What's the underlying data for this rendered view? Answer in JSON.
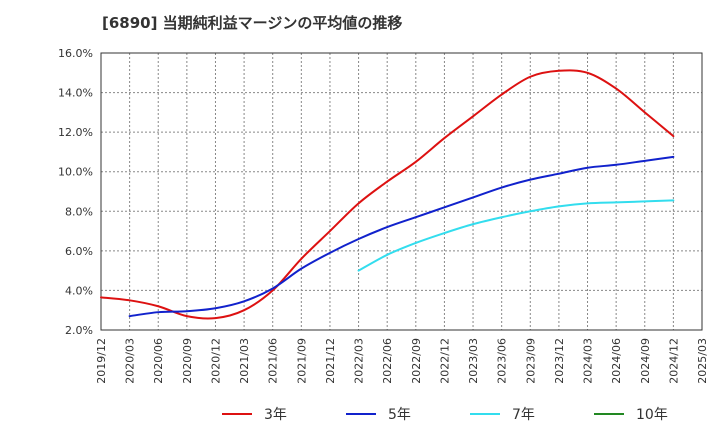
{
  "title": "[6890]  当期純利益マージンの平均値の推移",
  "chart_data": {
    "type": "line",
    "title": "[6890]  当期純利益マージンの平均値の推移",
    "xlabel": "",
    "ylabel": "",
    "ylim": [
      2.0,
      16.0
    ],
    "y_ticks": [
      "2.0%",
      "4.0%",
      "6.0%",
      "8.0%",
      "10.0%",
      "12.0%",
      "14.0%",
      "16.0%"
    ],
    "x_ticks": [
      "2019/12",
      "2020/03",
      "2020/06",
      "2020/09",
      "2020/12",
      "2021/03",
      "2021/06",
      "2021/09",
      "2021/12",
      "2022/03",
      "2022/06",
      "2022/09",
      "2022/12",
      "2023/03",
      "2023/06",
      "2023/09",
      "2023/12",
      "2024/03",
      "2024/06",
      "2024/09",
      "2024/12",
      "2025/03"
    ],
    "grid": true,
    "legend_position": "bottom",
    "series": [
      {
        "name": "3年",
        "color": "#dd1111",
        "points": [
          [
            "2019/12",
            3.65
          ],
          [
            "2020/03",
            3.5
          ],
          [
            "2020/06",
            3.2
          ],
          [
            "2020/09",
            2.7
          ],
          [
            "2020/12",
            2.6
          ],
          [
            "2021/03",
            3.0
          ],
          [
            "2021/06",
            4.0
          ],
          [
            "2021/09",
            5.6
          ],
          [
            "2021/12",
            7.0
          ],
          [
            "2022/03",
            8.4
          ],
          [
            "2022/06",
            9.5
          ],
          [
            "2022/09",
            10.5
          ],
          [
            "2022/12",
            11.7
          ],
          [
            "2023/03",
            12.8
          ],
          [
            "2023/06",
            13.9
          ],
          [
            "2023/09",
            14.8
          ],
          [
            "2023/12",
            15.1
          ],
          [
            "2024/03",
            15.0
          ],
          [
            "2024/06",
            14.2
          ],
          [
            "2024/09",
            13.0
          ],
          [
            "2024/12",
            11.8
          ]
        ]
      },
      {
        "name": "5年",
        "color": "#1122cc",
        "points": [
          [
            "2020/03",
            2.7
          ],
          [
            "2020/06",
            2.9
          ],
          [
            "2020/09",
            2.95
          ],
          [
            "2020/12",
            3.1
          ],
          [
            "2021/03",
            3.45
          ],
          [
            "2021/06",
            4.1
          ],
          [
            "2021/09",
            5.1
          ],
          [
            "2021/12",
            5.9
          ],
          [
            "2022/03",
            6.6
          ],
          [
            "2022/06",
            7.2
          ],
          [
            "2022/09",
            7.7
          ],
          [
            "2022/12",
            8.2
          ],
          [
            "2023/03",
            8.7
          ],
          [
            "2023/06",
            9.2
          ],
          [
            "2023/09",
            9.6
          ],
          [
            "2023/12",
            9.9
          ],
          [
            "2024/03",
            10.2
          ],
          [
            "2024/06",
            10.35
          ],
          [
            "2024/09",
            10.55
          ],
          [
            "2024/12",
            10.75
          ]
        ]
      },
      {
        "name": "7年",
        "color": "#33ddee",
        "points": [
          [
            "2022/03",
            5.0
          ],
          [
            "2022/06",
            5.8
          ],
          [
            "2022/09",
            6.4
          ],
          [
            "2022/12",
            6.9
          ],
          [
            "2023/03",
            7.35
          ],
          [
            "2023/06",
            7.7
          ],
          [
            "2023/09",
            8.0
          ],
          [
            "2023/12",
            8.25
          ],
          [
            "2024/03",
            8.4
          ],
          [
            "2024/06",
            8.45
          ],
          [
            "2024/09",
            8.5
          ],
          [
            "2024/12",
            8.55
          ]
        ]
      },
      {
        "name": "10年",
        "color": "#228822",
        "points": []
      }
    ]
  }
}
